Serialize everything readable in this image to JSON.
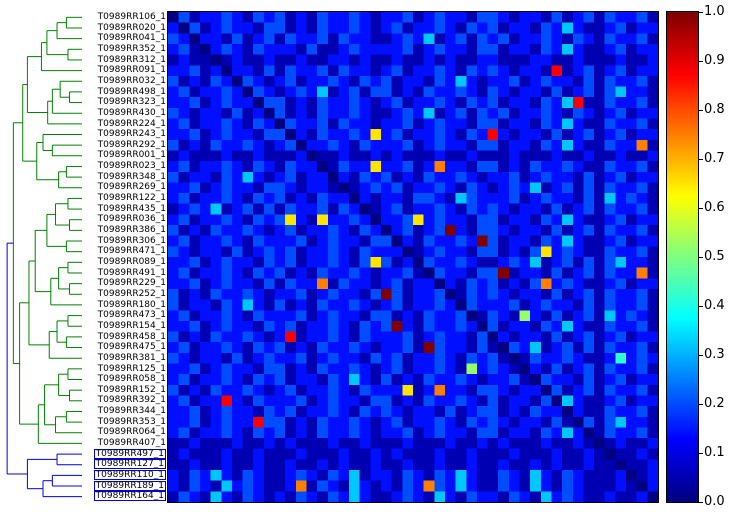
{
  "chart_data": {
    "type": "heatmap",
    "title": "",
    "colormap": "jet",
    "vmin": 0.0,
    "vmax": 1.0,
    "rows": 46,
    "cols": 46,
    "diagonal_value": 0.0,
    "row_labels": [
      "T0989RR106_1",
      "T0989RR020_1",
      "T0989RR041_1",
      "T0989RR352_1",
      "T0989RR312_1",
      "T0989RR091_1",
      "T0989RR032_1",
      "T0989RR498_1",
      "T0989RR323_1",
      "T0989RR430_1",
      "T0989RR224_1",
      "T0989RR243_1",
      "T0989RR292_1",
      "T0989RR001_1",
      "T0989RR023_1",
      "T0989RR348_1",
      "T0989RR269_1",
      "T0989RR122_1",
      "T0989RR435_1",
      "T0989RR036_1",
      "T0989RR386_1",
      "T0989RR306_1",
      "T0989RR471_1",
      "T0989RR089_1",
      "T0989RR491_1",
      "T0989RR229_1",
      "T0989RR252_1",
      "T0989RR180_1",
      "T0989RR473_1",
      "T0989RR154_1",
      "T0989RR458_1",
      "T0989RR475_1",
      "T0989RR381_1",
      "T0989RR125_1",
      "T0989RR058_1",
      "T0989RR152_1",
      "T0989RR392_1",
      "T0989RR344_1",
      "T0989RR353_1",
      "T0989RR064_1",
      "T0989RR407_1",
      "T0989RR497_1",
      "T0989RR127_1",
      "T0989RR110_1",
      "T0989RR189_1",
      "T0989RR164_1"
    ],
    "boxed_row_labels": [
      41,
      42,
      43,
      44,
      45
    ],
    "value_map": {
      "0": 0.0,
      "1": 0.05,
      "2": 0.14,
      "3": 0.2,
      "4": 0.32,
      "5": 0.42,
      "6": 0.52,
      "7": 0.65,
      "8": 0.75,
      "9": 0.88,
      "a": 1.0
    },
    "matrix_encoded": [
      [
        "2312232132",
        "3121322321",
        "2231232213",
        "3212213123",
        "132231"
      ],
      [
        "2231232213",
        "3121322321",
        "2312232132",
        "3122132421",
        "123122"
      ],
      [
        "3212213123",
        "1322313221",
        "1232412313",
        "2312232132",
        "132231"
      ],
      [
        "2312232132",
        "2213112322",
        "2231232213",
        "3122132421",
        "123122"
      ],
      [
        "1211212112",
        "1121122121",
        "1211212112",
        "2111221121",
        "112112"
      ],
      [
        "2231232213",
        "1322313221",
        "2312232132",
        "3212219123",
        "123122"
      ],
      [
        "3121322321",
        "2312232132",
        "3122132421",
        "2231232213",
        "132231"
      ],
      [
        "2312232132",
        "1232412313",
        "3121322321",
        "3212213123",
        "134221"
      ],
      [
        "2231232213",
        "3121322321",
        "2312232132",
        "3122132491",
        "132231"
      ],
      [
        "3212213123",
        "3121322321",
        "1232412313",
        "2312232132",
        "123122"
      ],
      [
        "2312232132",
        "1322313221",
        "2231232213",
        "3122132421",
        "132231"
      ],
      [
        "2231232213",
        "3121322327",
        "2312232132",
        "9212213123",
        "123122"
      ],
      [
        "3121322321",
        "2312232132",
        "2231232213",
        "3122132421",
        "132281"
      ],
      [
        "1211121121",
        "1121112112",
        "1211121121",
        "1121112112",
        "112112"
      ],
      [
        "2312232132",
        "1322313227",
        "2231282213",
        "3121322321",
        "132231"
      ],
      [
        "3122132421",
        "2312232132",
        "3121322321",
        "2231232213",
        "123122"
      ],
      [
        "2231232213",
        "3212213123",
        "2312232132",
        "1232412313",
        "132231"
      ],
      [
        "2312232132",
        "3121322321",
        "2213321432",
        "2231232213",
        "142321"
      ],
      [
        "1232412313",
        "1322313221",
        "2312232132",
        "3212213123",
        "132231"
      ],
      [
        "2312232132",
        "3721722321",
        "2237232213",
        "3122132421",
        "123122"
      ],
      [
        "3121322321",
        "2312232132",
        "223123a213",
        "3212213123",
        "132231"
      ],
      [
        "2312232132",
        "2231232213",
        "312132232a",
        "3122132421",
        "123122"
      ],
      [
        "3212213123",
        "2312232132",
        "2231232213",
        "3121372321",
        "132231"
      ],
      [
        "2231232213",
        "2312232137",
        "3121322321",
        "1232412313",
        "134221"
      ],
      [
        "2312232132",
        "3121322321",
        "2231232213",
        "3a12213123",
        "132281"
      ],
      [
        "2231232213",
        "1322813221",
        "2312232132",
        "3121382321",
        "123122"
      ],
      [
        "3121322321",
        "2231232213",
        "a312232132",
        "3212213123",
        "132231"
      ],
      [
        "3122132421",
        "3121322321",
        "2312232132",
        "2231232213",
        "132231"
      ],
      [
        "2312232132",
        "2231232213",
        "3121322321",
        "3216213123",
        "142321"
      ],
      [
        "2231232213",
        "2312232132",
        "3a21322321",
        "3122132421",
        "132231"
      ],
      [
        "3121322321",
        "2912232132",
        "2231232213",
        "3212213123",
        "123122"
      ],
      [
        "2312232132",
        "3121322321",
        "2231a32213",
        "1232412313",
        "132231"
      ],
      [
        "3212213123",
        "2231232213",
        "2312232132",
        "3121322321",
        "125232"
      ],
      [
        "2231232213",
        "3121322321",
        "2312232162",
        "3212213123",
        "132231"
      ],
      [
        "2312232132",
        "3122132421",
        "3121322321",
        "2231232213",
        "123122"
      ],
      [
        "3121322321",
        "2312232132",
        "2271282213",
        "3212213123",
        "132231"
      ],
      [
        "2312292132",
        "2231232213",
        "3121322321",
        "3122132421",
        "123122"
      ],
      [
        "2231232213",
        "2312232132",
        "3212213123",
        "3121322321",
        "132231"
      ],
      [
        "2231232293",
        "3121322321",
        "2312232132",
        "3212213123",
        "134221"
      ],
      [
        "2312232132",
        "3121322321",
        "2231232213",
        "3122132421",
        "132231"
      ],
      [
        "1121112112",
        "1211121121",
        "1121112112",
        "1211121121",
        "112112"
      ],
      [
        "1211121121",
        "1121112112",
        "1211121121",
        "1121112112",
        "121121"
      ],
      [
        "1121121121",
        "1211212112",
        "1121121121",
        "1211212112",
        "112112"
      ],
      [
        "2132421321",
        "1232132412",
        "2132132421",
        "1321421321",
        "112112"
      ],
      [
        "2132142321",
        "1281321421",
        "2132832421",
        "1321421321",
        "112112"
      ],
      [
        "1321421321",
        "2132132421",
        "1232142132",
        "2132142321",
        "121121"
      ]
    ],
    "colorbar": {
      "ticks": [
        "1.0",
        "0.9",
        "0.8",
        "0.7",
        "0.6",
        "0.5",
        "0.4",
        "0.3",
        "0.2",
        "0.1",
        "0.0"
      ]
    },
    "dendrogram": {
      "colors": {
        "g": "#008000",
        "b": "#0000dd"
      },
      "merges": [
        [
          80,
          0,
          100,
          1,
          100,
          "g"
        ],
        [
          68,
          0.5,
          80,
          2,
          100,
          "g"
        ],
        [
          82,
          3,
          100,
          4,
          100,
          "g"
        ],
        [
          55,
          1.25,
          68,
          3.5,
          82,
          "g"
        ],
        [
          48,
          2.375,
          55,
          5,
          100,
          "g"
        ],
        [
          84,
          7,
          100,
          8,
          100,
          "g"
        ],
        [
          72,
          6,
          100,
          7.5,
          84,
          "g"
        ],
        [
          62,
          6.75,
          72,
          9,
          100,
          "g"
        ],
        [
          56,
          7.875,
          62,
          10,
          100,
          "g"
        ],
        [
          30,
          3.6875,
          48,
          8.9375,
          56,
          "g"
        ],
        [
          62,
          12,
          100,
          13,
          100,
          "g"
        ],
        [
          50,
          11,
          100,
          12.5,
          62,
          "g"
        ],
        [
          80,
          14,
          100,
          15,
          100,
          "g"
        ],
        [
          70,
          14.5,
          80,
          16,
          100,
          "g"
        ],
        [
          42,
          11.75,
          50,
          15.25,
          70,
          "g"
        ],
        [
          24,
          6.3125,
          30,
          13.5,
          42,
          "g"
        ],
        [
          82,
          17,
          100,
          18,
          100,
          "g"
        ],
        [
          84,
          19,
          100,
          20,
          100,
          "g"
        ],
        [
          66,
          17.5,
          82,
          19.5,
          84,
          "g"
        ],
        [
          80,
          21,
          100,
          22,
          100,
          "g"
        ],
        [
          55,
          18.5,
          66,
          21.5,
          80,
          "g"
        ],
        [
          82,
          23,
          100,
          24,
          100,
          "g"
        ],
        [
          84,
          25,
          100,
          26,
          100,
          "g"
        ],
        [
          70,
          23.5,
          82,
          25.5,
          84,
          "g"
        ],
        [
          60,
          24.5,
          70,
          27,
          100,
          "g"
        ],
        [
          40,
          20,
          55,
          25.75,
          60,
          "g"
        ],
        [
          82,
          28,
          100,
          29,
          100,
          "g"
        ],
        [
          80,
          30,
          100,
          31,
          100,
          "g"
        ],
        [
          68,
          28.5,
          82,
          30.5,
          80,
          "g"
        ],
        [
          58,
          29.5,
          68,
          32,
          100,
          "g"
        ],
        [
          32,
          22.875,
          40,
          30.75,
          58,
          "g"
        ],
        [
          82,
          33,
          100,
          34,
          100,
          "g"
        ],
        [
          84,
          35,
          100,
          36,
          100,
          "g"
        ],
        [
          70,
          33.5,
          82,
          35.5,
          84,
          "g"
        ],
        [
          80,
          37,
          100,
          38,
          100,
          "g"
        ],
        [
          66,
          37.5,
          80,
          39,
          100,
          "g"
        ],
        [
          52,
          34.5,
          70,
          38.25,
          66,
          "g"
        ],
        [
          44,
          36.375,
          52,
          40,
          100,
          "g"
        ],
        [
          20,
          26.8,
          32,
          38.19,
          44,
          "g"
        ],
        [
          12,
          9.9,
          24,
          32.5,
          20,
          "g"
        ],
        [
          68,
          41,
          100,
          42,
          100,
          "b"
        ],
        [
          62,
          43,
          100,
          44,
          100,
          "b"
        ],
        [
          50,
          43.5,
          62,
          45,
          100,
          "b"
        ],
        [
          30,
          41.5,
          68,
          44.25,
          50,
          "b"
        ],
        [
          4,
          21.2,
          12,
          42.875,
          30,
          "b"
        ]
      ]
    }
  }
}
